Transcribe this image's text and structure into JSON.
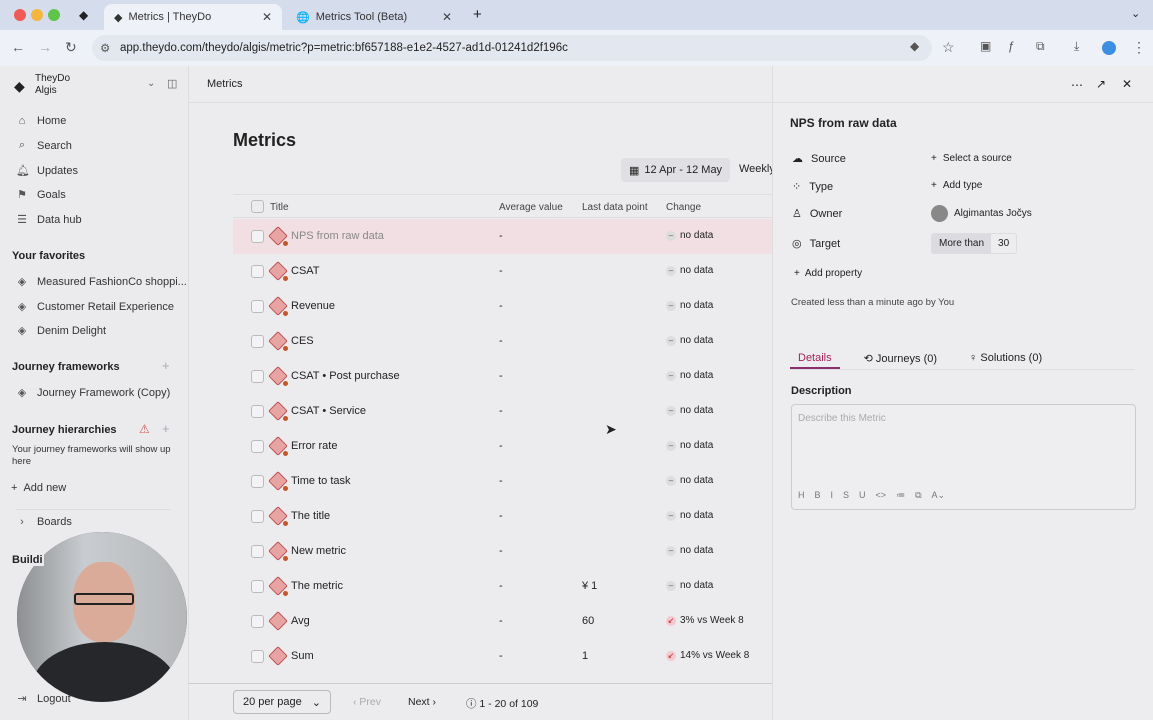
{
  "browser": {
    "tabs": [
      {
        "label": "Metrics | TheyDo",
        "active": true
      },
      {
        "label": "Metrics Tool (Beta)",
        "active": false
      }
    ],
    "url": "app.theydo.com/theydo/algis/metric?p=metric:bf657188-e1e2-4527-ad1d-01241d2f196c"
  },
  "sidebar": {
    "org": "TheyDo",
    "workspace": "Algis",
    "nav": [
      {
        "label": "Home",
        "icon": "home-icon"
      },
      {
        "label": "Search",
        "icon": "search-icon"
      },
      {
        "label": "Updates",
        "icon": "bell-icon"
      },
      {
        "label": "Goals",
        "icon": "goal-icon"
      },
      {
        "label": "Data hub",
        "icon": "database-icon"
      }
    ],
    "favorites_title": "Your favorites",
    "favorites": [
      "Measured FashionCo shoppi...",
      "Customer Retail Experience",
      "Denim Delight"
    ],
    "frameworks_title": "Journey frameworks",
    "frameworks": [
      "Journey Framework (Copy)"
    ],
    "hierarchies_title": "Journey hierarchies",
    "hierarchies_empty": "Your journey frameworks will show up here",
    "add_new": "Add new",
    "boards": "Boards",
    "building_partial": "Buildi",
    "logout": "Logout"
  },
  "main": {
    "breadcrumb": "Metrics",
    "title": "Metrics",
    "date_range": "12 Apr - 12 May",
    "interval": "Weekly",
    "columns": [
      "Title",
      "Average value",
      "Last data point",
      "Change"
    ],
    "rows": [
      {
        "title": "NPS from raw data",
        "avg": "-",
        "last": "",
        "change": "no data",
        "trend": "none",
        "status_dot": true,
        "selected": true
      },
      {
        "title": "CSAT",
        "avg": "-",
        "last": "",
        "change": "no data",
        "trend": "none",
        "status_dot": true
      },
      {
        "title": "Revenue",
        "avg": "-",
        "last": "",
        "change": "no data",
        "trend": "none",
        "status_dot": true
      },
      {
        "title": "CES",
        "avg": "-",
        "last": "",
        "change": "no data",
        "trend": "none",
        "status_dot": true
      },
      {
        "title": "CSAT • Post purchase",
        "avg": "-",
        "last": "",
        "change": "no data",
        "trend": "none",
        "status_dot": true
      },
      {
        "title": "CSAT • Service",
        "avg": "-",
        "last": "",
        "change": "no data",
        "trend": "none",
        "status_dot": true
      },
      {
        "title": "Error rate",
        "avg": "-",
        "last": "",
        "change": "no data",
        "trend": "none",
        "status_dot": true
      },
      {
        "title": "Time to task",
        "avg": "-",
        "last": "",
        "change": "no data",
        "trend": "none",
        "status_dot": true
      },
      {
        "title": "The title",
        "avg": "-",
        "last": "",
        "change": "no data",
        "trend": "none",
        "status_dot": true
      },
      {
        "title": "New metric",
        "avg": "-",
        "last": "",
        "change": "no data",
        "trend": "none",
        "status_dot": true
      },
      {
        "title": "The metric",
        "avg": "-",
        "last": "¥ 1",
        "change": "no data",
        "trend": "none",
        "status_dot": true
      },
      {
        "title": "Avg",
        "avg": "-",
        "last": "60",
        "change": "3% vs Week 8",
        "trend": "down",
        "status_dot": false
      },
      {
        "title": "Sum",
        "avg": "-",
        "last": "1",
        "change": "14% vs Week 8",
        "trend": "down",
        "status_dot": false
      }
    ],
    "per_page": "20 per page",
    "prev": "Prev",
    "next": "Next",
    "range": "1 - 20 of 109"
  },
  "panel": {
    "title": "NPS from raw data",
    "props": [
      {
        "label": "Source",
        "icon": "cloud-icon",
        "value": "Select a source"
      },
      {
        "label": "Type",
        "icon": "type-icon",
        "value": "Add type"
      },
      {
        "label": "Owner",
        "icon": "user-icon",
        "value": "Algimantas Jočys"
      },
      {
        "label": "Target",
        "icon": "target-icon",
        "value": ""
      }
    ],
    "target_op": "More than",
    "target_value": "30",
    "add_property": "Add property",
    "created": "Created less than a minute ago by You",
    "tabs": [
      "Details",
      "Journeys (0)",
      "Solutions (0)"
    ],
    "description_title": "Description",
    "description_placeholder": "Describe this Metric",
    "format_tools": [
      "H",
      "B",
      "I",
      "S",
      "U",
      "<>",
      "≔",
      "⧉",
      "A⌄"
    ]
  },
  "colors": {
    "accent": "#a3245a",
    "selected_row": "#f2dfe3",
    "metric_icon": "#e8a3a3",
    "status_dot": "#c2572a"
  }
}
